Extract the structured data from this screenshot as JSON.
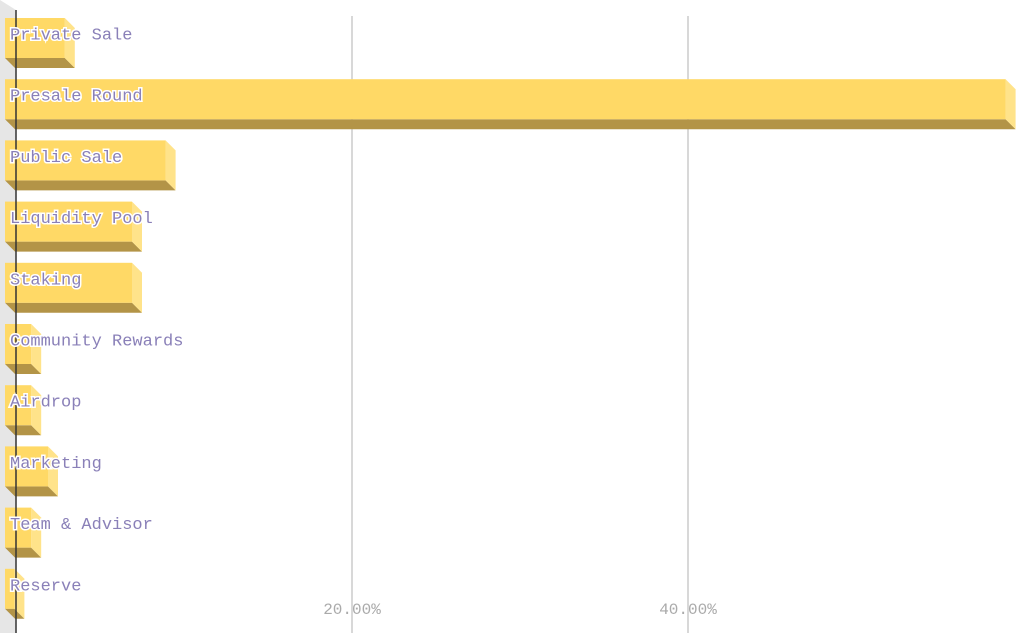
{
  "chart_data": {
    "type": "bar",
    "orientation": "horizontal",
    "categories": [
      "Private Sale",
      "Presale Round",
      "Public Sale",
      "Liquidity Pool",
      "Staking",
      "Community Rewards",
      "Airdrop",
      "Marketing",
      "Team & Advisor",
      "Reserve"
    ],
    "values": [
      3.5,
      59.5,
      9.5,
      7.5,
      7.5,
      1.5,
      1.5,
      2.5,
      1.5,
      0.5
    ],
    "color": "#ffd966",
    "xlim": [
      0,
      60
    ],
    "xticks": [
      {
        "value": 20,
        "label": "20.00%"
      },
      {
        "value": 40,
        "label": "40.00%"
      }
    ],
    "grid": true
  }
}
